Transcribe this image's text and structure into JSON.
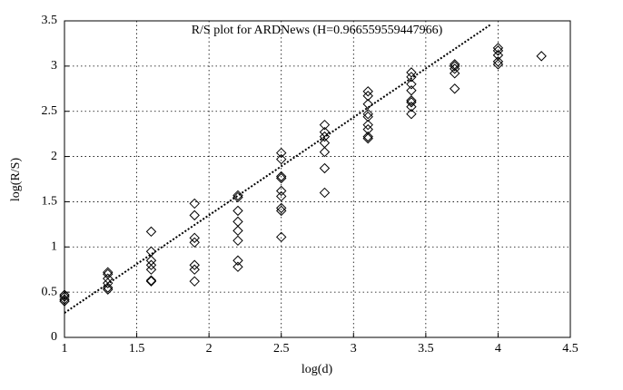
{
  "chart_data": {
    "type": "scatter",
    "title": "R/S plot for ARDNews (H=0.966559559447966)",
    "x_label": "log(d)",
    "y_label": "log(R/S)",
    "xlim": [
      1,
      4.5
    ],
    "xticks": [
      1,
      1.5,
      2,
      2.5,
      3,
      3.5,
      4,
      4.5
    ],
    "ylim": [
      0,
      3.5
    ],
    "yticks": [
      0,
      0.5,
      1,
      1.5,
      2,
      2.5,
      3,
      3.5
    ],
    "grid": true,
    "series": [
      {
        "color": "#000000",
        "x": [
          1,
          1,
          1,
          1,
          1.3,
          1.3,
          1.3,
          1.3,
          1.3,
          1.3,
          1.6,
          1.6,
          1.6,
          1.6,
          1.6,
          1.6,
          1.6,
          1.9,
          1.9,
          1.9,
          1.9,
          1.9,
          1.9,
          1.9,
          2.2,
          2.2,
          2.2,
          2.2,
          2.2,
          2.2,
          2.2,
          2.2,
          2.5,
          2.5,
          2.5,
          2.5,
          2.5,
          2.5,
          2.5,
          2.5,
          2.5,
          2.8,
          2.8,
          2.8,
          2.8,
          2.8,
          2.8,
          2.8,
          3.1,
          3.1,
          3.1,
          3.1,
          3.1,
          3.1,
          3.1,
          3.1,
          3.1,
          3.4,
          3.4,
          3.4,
          3.4,
          3.4,
          3.4,
          3.4,
          3.4,
          3.7,
          3.7,
          3.7,
          3.7,
          3.7,
          4.0,
          4.0,
          4.0,
          4.0,
          4.0,
          4.3
        ],
        "values": [
          0.47,
          0.45,
          0.42,
          0.4,
          0.72,
          0.7,
          0.65,
          0.6,
          0.55,
          0.53,
          1.17,
          0.95,
          0.85,
          0.8,
          0.75,
          0.63,
          0.62,
          1.48,
          1.35,
          1.1,
          1.05,
          0.8,
          0.75,
          0.62,
          1.57,
          1.55,
          1.4,
          1.28,
          1.18,
          1.07,
          0.85,
          0.78,
          2.04,
          1.97,
          1.78,
          1.76,
          1.62,
          1.56,
          1.43,
          1.4,
          1.11,
          2.35,
          2.27,
          2.22,
          2.15,
          2.05,
          1.87,
          1.6,
          2.72,
          2.67,
          2.58,
          2.47,
          2.44,
          2.35,
          2.3,
          2.22,
          2.2,
          2.93,
          2.88,
          2.8,
          2.73,
          2.62,
          2.6,
          2.55,
          2.47,
          3.02,
          3.0,
          2.97,
          2.92,
          2.75,
          3.2,
          3.17,
          3.12,
          3.05,
          3.02,
          3.11
        ]
      }
    ],
    "fit_line": {
      "color": "#000000",
      "x": [
        1,
        3.95
      ],
      "values": [
        0.27,
        3.46
      ]
    }
  }
}
